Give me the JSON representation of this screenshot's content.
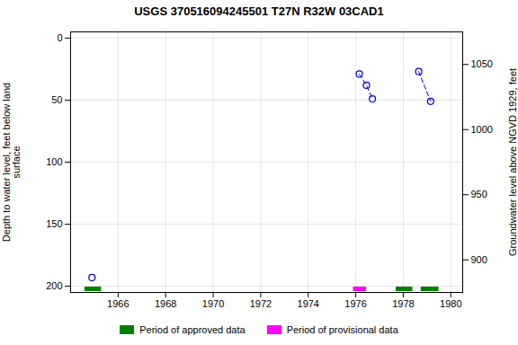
{
  "chart_data": {
    "type": "scatter",
    "title": "USGS 370516094245501 T27N R32W 03CAD1",
    "ylabel": "Depth to water level, feet below land\nsurface",
    "y2label": "Groundwater level above NGVD 1929, feet",
    "xlim": [
      1964.0,
      1980.5
    ],
    "ylim": [
      205,
      -5
    ],
    "y2lim": [
      875,
      1075
    ],
    "xticks": [
      1966,
      1968,
      1970,
      1972,
      1974,
      1976,
      1978,
      1980
    ],
    "yticks": [
      0,
      50,
      100,
      150,
      200
    ],
    "y2ticks": [
      900,
      950,
      1000,
      1050
    ],
    "grid": true,
    "legend": "bottom",
    "series": [
      {
        "type": "scatter",
        "x": [
          1964.9
        ],
        "values": [
          193
        ],
        "color": "#0000cc",
        "marker": "circle"
      },
      {
        "type": "line",
        "x": [
          1976.15,
          1976.45,
          1976.7
        ],
        "values": [
          29,
          38,
          49
        ],
        "color": "#0000cc",
        "marker": "circle",
        "line_style": "dashed"
      },
      {
        "type": "line",
        "x": [
          1978.65,
          1979.15
        ],
        "values": [
          27,
          51
        ],
        "color": "#0000cc",
        "marker": "circle",
        "line_style": "dashed"
      }
    ],
    "periods": [
      {
        "name": "Period of approved data",
        "color": "#008000",
        "ranges": [
          [
            1964.6,
            1965.3
          ],
          [
            1977.7,
            1978.4
          ],
          [
            1978.75,
            1979.5
          ]
        ]
      },
      {
        "name": "Period of provisional data",
        "color": "#ff00ff",
        "ranges": [
          [
            1975.9,
            1976.45
          ]
        ]
      }
    ]
  }
}
